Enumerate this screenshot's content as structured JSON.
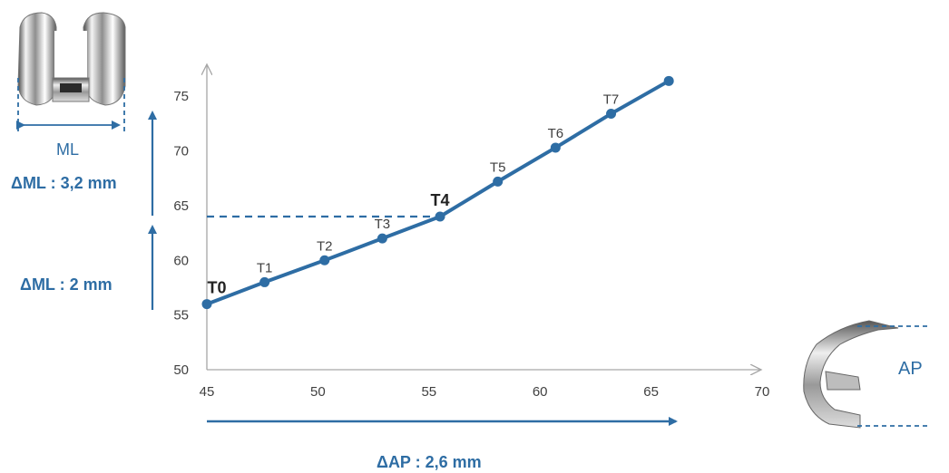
{
  "colors": {
    "primary": "#2e6da4",
    "axis": "#a6a6a6",
    "text": "#404040"
  },
  "icons": {
    "ml_implant": "femoral-component-front-icon",
    "ap_implant": "femoral-component-side-icon"
  },
  "labels": {
    "ml": "ML",
    "ap": "AP",
    "delta_ml_1": "ΔML : 3,2 mm",
    "delta_ml_2": "ΔML : 2 mm",
    "delta_ap": "ΔAP : 2,6 mm"
  },
  "chart_data": {
    "type": "line",
    "title": "",
    "xlabel": "",
    "ylabel": "",
    "xlim": [
      45,
      70
    ],
    "ylim": [
      50,
      78
    ],
    "xticks": [
      45,
      50,
      55,
      60,
      65,
      70
    ],
    "yticks": [
      50,
      55,
      60,
      65,
      70,
      75
    ],
    "grid": false,
    "series": [
      {
        "points": [
          {
            "label": "T0",
            "x": 45.0,
            "y": 56.0
          },
          {
            "label": "T1",
            "x": 47.6,
            "y": 58.0
          },
          {
            "label": "T2",
            "x": 50.3,
            "y": 60.0
          },
          {
            "label": "T3",
            "x": 52.9,
            "y": 62.0
          },
          {
            "label": "T4",
            "x": 55.5,
            "y": 64.0
          },
          {
            "label": "T5",
            "x": 58.1,
            "y": 67.2
          },
          {
            "label": "T6",
            "x": 60.7,
            "y": 70.3
          },
          {
            "label": "T7",
            "x": 63.2,
            "y": 73.4
          },
          {
            "label": "",
            "x": 65.8,
            "y": 76.4
          }
        ]
      }
    ],
    "reference_line": {
      "y": 64,
      "x_to": 55.5
    }
  }
}
